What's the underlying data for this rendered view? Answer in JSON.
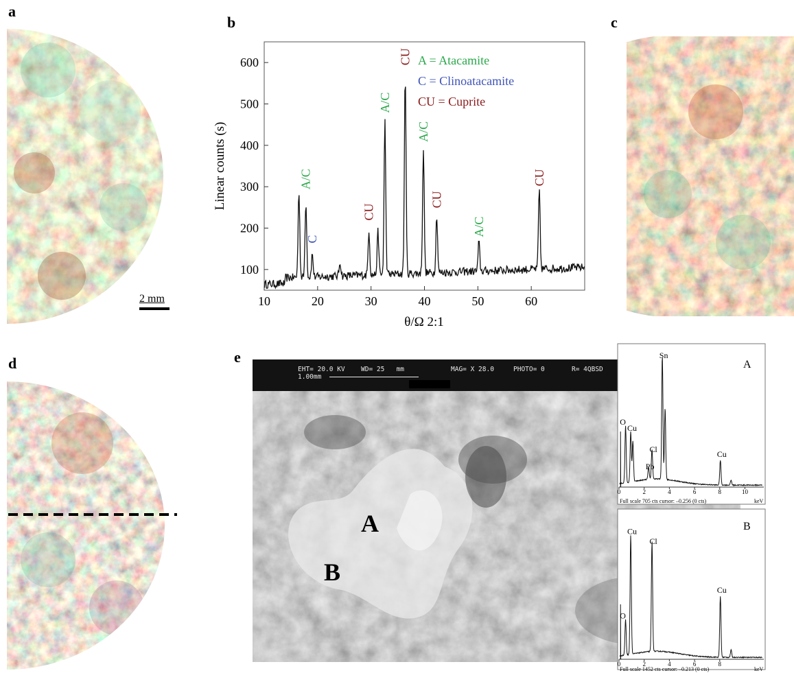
{
  "panels": {
    "a": {
      "letter": "a",
      "scale_bar": "2 mm"
    },
    "b": {
      "letter": "b"
    },
    "c": {
      "letter": "c"
    },
    "d": {
      "letter": "d"
    },
    "e": {
      "letter": "e"
    }
  },
  "xrd_legend": [
    {
      "text": "A = Atacamite",
      "color": "#2aa84a"
    },
    {
      "text": "C = Clinoatacamite",
      "color": "#3f55b8"
    },
    {
      "text": "CU = Cuprite",
      "color": "#8a1a1a"
    }
  ],
  "chart_data": [
    {
      "type": "line",
      "xlabel": "θ/Ω 2:1",
      "ylabel": "Linear counts (s)",
      "xlim": [
        10,
        70
      ],
      "ylim": [
        50,
        650
      ],
      "xticks": [
        10,
        20,
        30,
        40,
        50,
        60
      ],
      "yticks": [
        100,
        200,
        300,
        400,
        500,
        600
      ],
      "peaks": [
        {
          "x": 16.5,
          "y": 305
        },
        {
          "x": 17.8,
          "y": 280,
          "label": "A/C",
          "color": "#2aa84a"
        },
        {
          "x": 19.0,
          "y": 150,
          "label": "C",
          "color": "#3f55b8"
        },
        {
          "x": 24.2,
          "y": 130
        },
        {
          "x": 29.6,
          "y": 205,
          "label": "CU",
          "color": "#8a1a1a"
        },
        {
          "x": 31.3,
          "y": 200
        },
        {
          "x": 32.6,
          "y": 465,
          "label": "A/C",
          "color": "#2aa84a"
        },
        {
          "x": 36.4,
          "y": 580,
          "label": "CU",
          "color": "#8a1a1a"
        },
        {
          "x": 39.8,
          "y": 395,
          "label": "A/C",
          "color": "#2aa84a"
        },
        {
          "x": 42.3,
          "y": 235,
          "label": "CU",
          "color": "#8a1a1a"
        },
        {
          "x": 50.2,
          "y": 165,
          "label": "A/C",
          "color": "#2aa84a"
        },
        {
          "x": 61.5,
          "y": 288,
          "label": "CU",
          "color": "#8a1a1a"
        }
      ]
    },
    {
      "type": "line",
      "title": "A",
      "footer": "Full scale 705 cts cursor: –0.256 (0 cts)",
      "unit": "keV",
      "xlim": [
        0,
        11.5
      ],
      "xticks": [
        0,
        2,
        4,
        6,
        8,
        10
      ],
      "peaks": [
        {
          "x": 0.52,
          "y": 0.46,
          "label": "O"
        },
        {
          "x": 0.93,
          "y": 0.41,
          "label": "Cu"
        },
        {
          "x": 1.1,
          "y": 0.33
        },
        {
          "x": 2.35,
          "y": 0.1,
          "label": "Pb"
        },
        {
          "x": 2.62,
          "y": 0.24,
          "label": "Cl"
        },
        {
          "x": 3.44,
          "y": 1.0,
          "label": "Sn"
        },
        {
          "x": 3.66,
          "y": 0.58
        },
        {
          "x": 8.05,
          "y": 0.2,
          "label": "Cu"
        },
        {
          "x": 8.9,
          "y": 0.04
        }
      ]
    },
    {
      "type": "line",
      "title": "B",
      "footer": "Full scale 1452 cts cursor: –0.213 (0 cts)",
      "unit": "keV",
      "xlim": [
        0,
        11.5
      ],
      "xticks": [
        0,
        2,
        4,
        6,
        8
      ],
      "peaks": [
        {
          "x": 0.52,
          "y": 0.29,
          "label": "O"
        },
        {
          "x": 0.93,
          "y": 0.98,
          "label": "Cu"
        },
        {
          "x": 2.62,
          "y": 0.9,
          "label": "Cl"
        },
        {
          "x": 8.05,
          "y": 0.5,
          "label": "Cu"
        },
        {
          "x": 8.9,
          "y": 0.06
        }
      ]
    }
  ],
  "sem": {
    "eht": "EHT= 20.0 KV",
    "wd": "WD= 25   mm",
    "mag": "MAG= X 28.0",
    "photo": "PHOTO= 0",
    "r": "R= 4QBSD",
    "scale": "1.00mm",
    "region_a": "A",
    "region_b": "B"
  }
}
